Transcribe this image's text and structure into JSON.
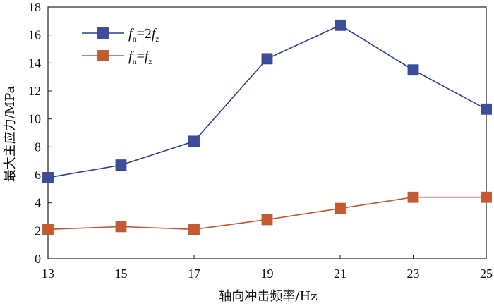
{
  "chart_data": {
    "type": "line",
    "xlabel": "轴向冲击频率/Hz",
    "ylabel": "最大主应力/MPa",
    "x": [
      13,
      15,
      17,
      19,
      21,
      23,
      25
    ],
    "xlim": [
      13,
      25
    ],
    "ylim": [
      0,
      18
    ],
    "xticks": [
      13,
      15,
      17,
      19,
      21,
      23,
      25
    ],
    "yticks": [
      0,
      2,
      4,
      6,
      8,
      10,
      12,
      14,
      16,
      18
    ],
    "grid": false,
    "legend_position": "top-left",
    "series": [
      {
        "name": "fn=2fz",
        "legend": {
          "v1": "f",
          "s1": "n",
          "op": "=2",
          "v2": "f",
          "s2": "z"
        },
        "color": "#2E3F8C",
        "marker_color": "#3C4E9A",
        "values": [
          5.8,
          6.7,
          8.4,
          14.3,
          16.7,
          13.5,
          10.7
        ]
      },
      {
        "name": "fn=fz",
        "legend": {
          "v1": "f",
          "s1": "n",
          "op": "=",
          "v2": "f",
          "s2": "z"
        },
        "color": "#C0562E",
        "marker_color": "#C45A32",
        "values": [
          2.1,
          2.3,
          2.1,
          2.8,
          3.6,
          4.4,
          4.4
        ]
      }
    ]
  }
}
